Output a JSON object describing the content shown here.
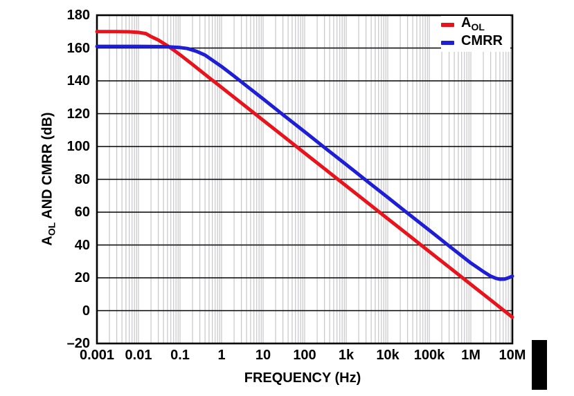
{
  "figure": {
    "background": "#ffffff",
    "page_edge_marker_color": "#000000"
  },
  "chart_data": {
    "type": "line",
    "title": "",
    "xlabel": "FREQUENCY (Hz)",
    "ylabel_pre": "A",
    "ylabel_sub": "OL",
    "ylabel_post": " AND CMRR (dB)",
    "x_scale": "log",
    "grid_on": true,
    "xlim": [
      0.001,
      10000000
    ],
    "ylim": [
      -20,
      180
    ],
    "x_tick_values": [
      0.001,
      0.01,
      0.1,
      1,
      10,
      100,
      1000,
      10000,
      100000,
      1000000,
      10000000
    ],
    "x_tick_labels": [
      "0.001",
      "0.01",
      "0.1",
      "1",
      "10",
      "100",
      "1k",
      "10k",
      "100k",
      "1M",
      "10M"
    ],
    "y_tick_values": [
      180,
      160,
      140,
      120,
      100,
      80,
      60,
      40,
      20,
      0,
      -20
    ],
    "y_tick_labels": [
      "180",
      "160",
      "140",
      "120",
      "100",
      "80",
      "60",
      "40",
      "20",
      "0",
      "–20"
    ],
    "grid_colors": {
      "horizontal": "#000000",
      "vertical_minor": "#c6c6ca",
      "frame": "#000000"
    },
    "legend_position": "top-right",
    "series": [
      {
        "name": "AOL",
        "legend_main": "A",
        "legend_sub": "OL",
        "color": "#e8131b",
        "flat_level_dB": 170,
        "corner_hz": 0.02,
        "slope": "-20 dB/decade",
        "points": [
          [
            0.001,
            170
          ],
          [
            0.003,
            170
          ],
          [
            0.006,
            169.9
          ],
          [
            0.01,
            169.5
          ],
          [
            0.015,
            168.8
          ],
          [
            0.02,
            167
          ],
          [
            0.03,
            164.9
          ],
          [
            0.05,
            161.4
          ],
          [
            0.07,
            158.8
          ],
          [
            0.1,
            155.9
          ],
          [
            0.2,
            150
          ],
          [
            0.5,
            142
          ],
          [
            1,
            136
          ],
          [
            3,
            126.5
          ],
          [
            10,
            116
          ],
          [
            30,
            106.5
          ],
          [
            100,
            96
          ],
          [
            300,
            86.5
          ],
          [
            1000,
            76
          ],
          [
            3000,
            66.5
          ],
          [
            10000,
            56
          ],
          [
            30000,
            46.5
          ],
          [
            100000,
            36
          ],
          [
            300000,
            26.5
          ],
          [
            1000000,
            16
          ],
          [
            3000000,
            6.5
          ],
          [
            10000000,
            -4
          ]
        ]
      },
      {
        "name": "CMRR",
        "legend_main": "CMRR",
        "legend_sub": "",
        "color": "#1e1ed6",
        "flat_level_dB": 161,
        "corner_hz": 0.25,
        "slope": "-20 dB/decade",
        "points": [
          [
            0.001,
            161
          ],
          [
            0.005,
            161
          ],
          [
            0.01,
            161
          ],
          [
            0.03,
            160.9
          ],
          [
            0.05,
            160.8
          ],
          [
            0.1,
            160.3
          ],
          [
            0.15,
            159.7
          ],
          [
            0.25,
            158
          ],
          [
            0.4,
            155.7
          ],
          [
            0.6,
            152.6
          ],
          [
            1,
            148.7
          ],
          [
            2,
            142.9
          ],
          [
            3,
            139.4
          ],
          [
            5,
            135
          ],
          [
            10,
            129
          ],
          [
            30,
            119.4
          ],
          [
            100,
            109
          ],
          [
            300,
            99.4
          ],
          [
            1000,
            89
          ],
          [
            3000,
            79.4
          ],
          [
            10000,
            69
          ],
          [
            30000,
            59.4
          ],
          [
            100000,
            49
          ],
          [
            300000,
            39.4
          ],
          [
            1000000,
            29
          ],
          [
            1500000,
            26
          ],
          [
            2000000,
            23.8
          ],
          [
            3000000,
            21
          ],
          [
            4000000,
            19.7
          ],
          [
            5000000,
            19.1
          ],
          [
            6500000,
            19.2
          ],
          [
            8000000,
            20
          ],
          [
            10000000,
            21
          ]
        ]
      }
    ]
  }
}
